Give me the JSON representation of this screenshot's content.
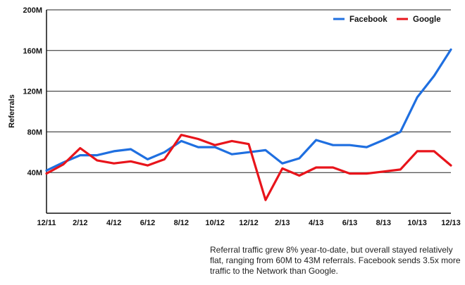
{
  "chart_data": {
    "type": "line",
    "ylabel": "Referrals",
    "ylim": [
      0,
      200
    ],
    "yticks": [
      {
        "value": 40,
        "label": "40M"
      },
      {
        "value": 80,
        "label": "80M"
      },
      {
        "value": 120,
        "label": "120M"
      },
      {
        "value": 160,
        "label": "160M"
      },
      {
        "value": 200,
        "label": "200M"
      }
    ],
    "x": [
      "12/11",
      "1/12",
      "2/12",
      "3/12",
      "4/12",
      "5/12",
      "6/12",
      "7/12",
      "8/12",
      "9/12",
      "10/12",
      "11/12",
      "12/12",
      "1/13",
      "2/13",
      "3/13",
      "4/13",
      "5/13",
      "6/13",
      "7/13",
      "8/13",
      "9/13",
      "10/13",
      "11/13",
      "12/13"
    ],
    "xtick_labels": [
      "12/11",
      "2/12",
      "4/12",
      "6/12",
      "8/12",
      "10/12",
      "12/12",
      "2/13",
      "4/13",
      "6/13",
      "8/13",
      "10/13",
      "12/13"
    ],
    "legend_position": "top-right",
    "grid": "horizontal",
    "series": [
      {
        "name": "Facebook",
        "color": "#1f6fe0",
        "values": [
          42,
          50,
          57,
          57,
          61,
          63,
          53,
          60,
          71,
          65,
          65,
          58,
          60,
          62,
          49,
          54,
          72,
          67,
          67,
          65,
          72,
          80,
          114,
          135,
          161
        ]
      },
      {
        "name": "Google",
        "color": "#e8141b",
        "values": [
          39,
          48,
          64,
          52,
          49,
          51,
          47,
          53,
          77,
          73,
          67,
          71,
          68,
          13,
          44,
          37,
          45,
          45,
          39,
          39,
          41,
          43,
          61,
          61,
          47
        ]
      }
    ]
  },
  "caption": "Referral traffic grew 8% year-to-date, but overall stayed relatively flat, ranging from 60M to 43M referrals.  Facebook sends 3.5x more traffic to the Network than Google."
}
